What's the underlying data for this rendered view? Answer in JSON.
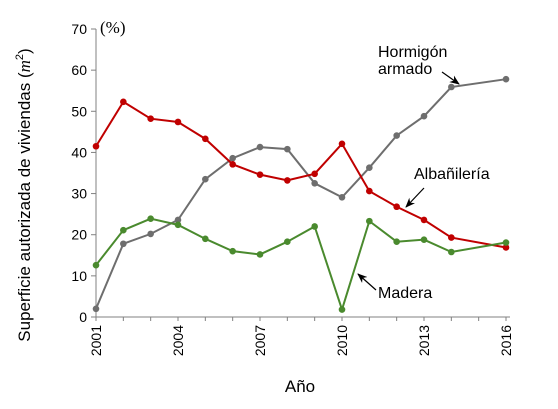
{
  "chart_data": {
    "type": "line",
    "xlabel": "Año",
    "ylabel": "Superficie autorizada de viviendas (",
    "ylabel_unit": "m",
    "ylabel_exp": "2",
    "ylabel_close": ")",
    "unit_label": "(%)",
    "xlim": [
      2001,
      2016
    ],
    "ylim": [
      0,
      70
    ],
    "x_ticks": [
      2001,
      2004,
      2007,
      2010,
      2013,
      2016
    ],
    "y_ticks": [
      0,
      10,
      20,
      30,
      40,
      50,
      60,
      70
    ],
    "x": [
      2001,
      2002,
      2003,
      2004,
      2005,
      2006,
      2007,
      2008,
      2009,
      2010,
      2011,
      2012,
      2013,
      2014,
      2015,
      2016
    ],
    "series": [
      {
        "name": "Hormigón armado",
        "label_lines": [
          "Hormigón",
          "armado"
        ],
        "color": "#6e6e6e",
        "values": [
          2,
          17.8,
          20.2,
          23.6,
          33.5,
          38.6,
          41.3,
          40.8,
          32.5,
          29.1,
          36.3,
          44.1,
          48.8,
          55.9,
          null,
          57.8
        ]
      },
      {
        "name": "Albañilería",
        "label_lines": [
          "Albañilería"
        ],
        "color": "#c00000",
        "values": [
          41.5,
          52.3,
          48.2,
          47.4,
          43.3,
          37.1,
          34.6,
          33.2,
          34.8,
          42.1,
          30.6,
          26.8,
          23.6,
          19.3,
          null,
          16.9
        ]
      },
      {
        "name": "Madera",
        "label_lines": [
          "Madera"
        ],
        "color": "#4a8a2e",
        "values": [
          12.6,
          21.1,
          23.9,
          22.4,
          19,
          16,
          15.2,
          18.3,
          22,
          1.8,
          23.3,
          18.3,
          18.8,
          15.8,
          null,
          18.1
        ]
      }
    ],
    "grid": false,
    "legend": "inline-annotations"
  }
}
